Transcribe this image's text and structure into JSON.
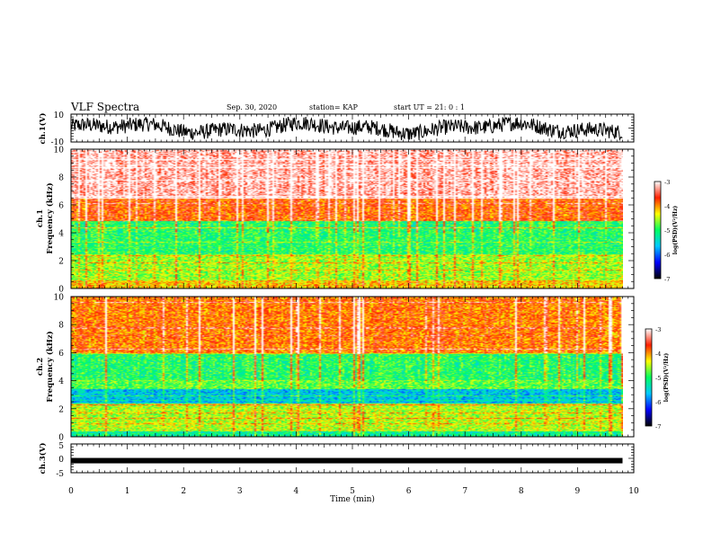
{
  "header": {
    "title": "VLF Spectra",
    "date": "Sep. 30, 2020",
    "station": "station= KAP",
    "start": "start  UT =   21: 0  : 1"
  },
  "chart_data": [
    {
      "type": "line",
      "name": "ch.1 waveform",
      "ylabel": "ch.1(V)",
      "ylim": [
        -10,
        10
      ],
      "yticks": [
        "10",
        "-10"
      ],
      "xlim": [
        0,
        10
      ],
      "x_extent_min": 9.8
    },
    {
      "type": "heatmap",
      "name": "ch.1 spectrogram",
      "ylabel_line1": "ch.1",
      "ylabel_line2": "Frequency (kHz)",
      "ylim": [
        0,
        10
      ],
      "yticks": [
        "0",
        "2",
        "4",
        "6",
        "8",
        "10"
      ],
      "xlim": [
        0,
        10
      ],
      "color_scale": {
        "min": -7,
        "max": -3,
        "ticks": [
          "-3",
          "-4",
          "-5",
          "-6",
          "-7"
        ],
        "label": "log(PSD)(V²/Hz)",
        "colors": [
          "#000000",
          "#0000ff",
          "#00c8ff",
          "#00ff60",
          "#ffff00",
          "#ff2000",
          "#ffffff"
        ]
      },
      "bands": [
        {
          "from_khz": 0,
          "to_khz": 0.6,
          "level": -4.2
        },
        {
          "from_khz": 0.6,
          "to_khz": 2.5,
          "level": -4.6
        },
        {
          "from_khz": 2.5,
          "to_khz": 4.9,
          "level": -5.0
        },
        {
          "from_khz": 4.9,
          "to_khz": 6.5,
          "level": -3.8
        },
        {
          "from_khz": 6.5,
          "to_khz": 10,
          "level": -3.2
        }
      ]
    },
    {
      "type": "heatmap",
      "name": "ch.2 spectrogram",
      "ylabel_line1": "ch.2",
      "ylabel_line2": "Frequency (kHz)",
      "ylim": [
        0,
        10
      ],
      "yticks": [
        "0",
        "2",
        "4",
        "6",
        "8",
        "10"
      ],
      "xlim": [
        0,
        10
      ],
      "color_scale": {
        "min": -7,
        "max": -3,
        "ticks": [
          "-3",
          "-4",
          "-5",
          "-6",
          "-7"
        ],
        "label": "log(PSD)(V²/Hz)",
        "colors": [
          "#000000",
          "#0000ff",
          "#00c8ff",
          "#00ff60",
          "#ffff00",
          "#ff2000",
          "#ffffff"
        ]
      },
      "bands": [
        {
          "from_khz": 0,
          "to_khz": 0.4,
          "level": -5.2
        },
        {
          "from_khz": 0.4,
          "to_khz": 2.4,
          "level": -4.5
        },
        {
          "from_khz": 2.4,
          "to_khz": 3.4,
          "level": -5.6
        },
        {
          "from_khz": 3.4,
          "to_khz": 4.0,
          "level": -4.8
        },
        {
          "from_khz": 4.0,
          "to_khz": 6.0,
          "level": -5.0
        },
        {
          "from_khz": 6.0,
          "to_khz": 10,
          "level": -3.9
        }
      ]
    },
    {
      "type": "line",
      "name": "ch.3 waveform",
      "ylabel": "ch.3(V)",
      "ylim": [
        -5,
        5
      ],
      "yticks": [
        "5",
        "0",
        "-5"
      ],
      "value_approx": -0.8,
      "xlim": [
        0,
        10
      ],
      "xlabel": "Time (min)",
      "xticks": [
        "0",
        "1",
        "2",
        "3",
        "4",
        "5",
        "6",
        "7",
        "8",
        "9",
        "10"
      ],
      "x_extent_min": 9.8
    }
  ]
}
